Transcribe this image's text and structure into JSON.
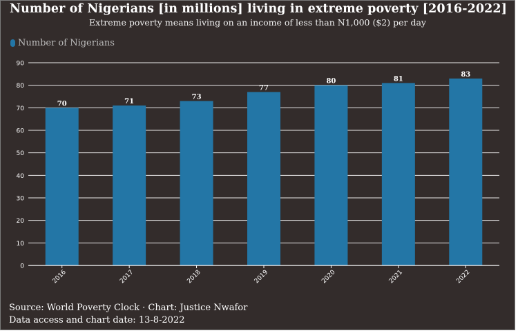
{
  "chart_data": {
    "type": "bar",
    "title": "Number of Nigerians [in millions] living in extreme poverty [2016-2022]",
    "subtitle": "Extreme poverty means living on an income of less than N1,000 ($2) per day",
    "categories": [
      "2016",
      "2017",
      "2018",
      "2019",
      "2020",
      "2021",
      "2022"
    ],
    "series": [
      {
        "name": "Number of Nigerians",
        "values": [
          70,
          71,
          73,
          77,
          80,
          81,
          83
        ]
      }
    ],
    "data_labels": [
      "70",
      "71",
      "73",
      "77",
      "80",
      "81",
      "83"
    ],
    "yticks": [
      0,
      10,
      20,
      30,
      40,
      50,
      60,
      70,
      80,
      90
    ],
    "ylim": [
      0,
      90
    ],
    "grid": true,
    "legend": "top-left",
    "colors": {
      "bar": "#2376a6",
      "background": "#332c2b",
      "grid": "#ffffff",
      "axis_text": "#ffffff"
    }
  },
  "footer": {
    "source": "Source: World Poverty Clock · Chart: Justice Nwafor",
    "date": "Data access and chart date: 13-8-2022"
  }
}
